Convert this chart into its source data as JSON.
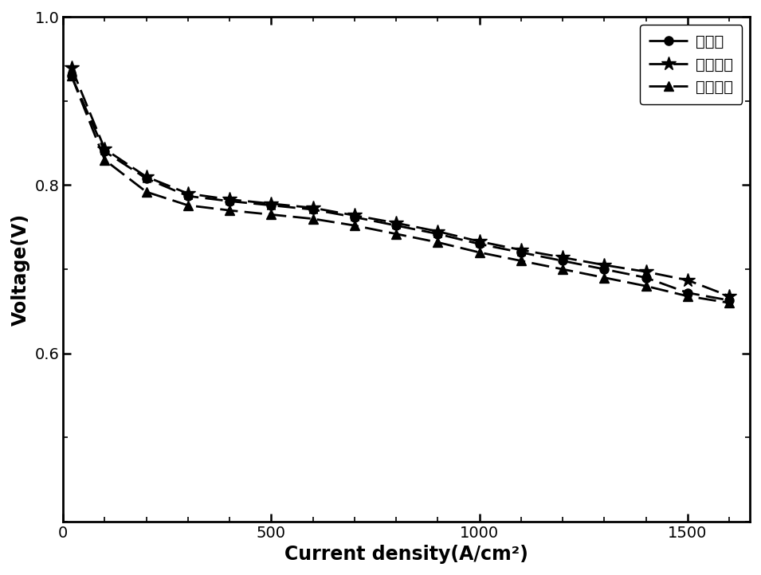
{
  "series": [
    {
      "label": "比较例",
      "marker": "o",
      "x": [
        20,
        100,
        200,
        300,
        400,
        500,
        600,
        700,
        800,
        900,
        1000,
        1100,
        1200,
        1300,
        1400,
        1500,
        1600
      ],
      "y": [
        0.93,
        0.84,
        0.808,
        0.787,
        0.781,
        0.776,
        0.771,
        0.762,
        0.752,
        0.742,
        0.73,
        0.72,
        0.71,
        0.7,
        0.69,
        0.672,
        0.663
      ]
    },
    {
      "label": "实施例一",
      "marker": "*",
      "x": [
        20,
        100,
        200,
        300,
        400,
        500,
        600,
        700,
        800,
        900,
        1000,
        1100,
        1200,
        1300,
        1400,
        1500,
        1600
      ],
      "y": [
        0.94,
        0.843,
        0.81,
        0.79,
        0.783,
        0.778,
        0.773,
        0.764,
        0.755,
        0.745,
        0.733,
        0.723,
        0.714,
        0.705,
        0.697,
        0.687,
        0.668
      ]
    },
    {
      "label": "实施例二",
      "marker": "^",
      "x": [
        20,
        100,
        200,
        300,
        400,
        500,
        600,
        700,
        800,
        900,
        1000,
        1100,
        1200,
        1300,
        1400,
        1500,
        1600
      ],
      "y": [
        0.93,
        0.83,
        0.792,
        0.776,
        0.77,
        0.765,
        0.76,
        0.752,
        0.742,
        0.732,
        0.72,
        0.71,
        0.7,
        0.69,
        0.68,
        0.668,
        0.66
      ]
    }
  ],
  "xlabel": "Current density(A/cm²)",
  "ylabel": "Voltage(V)",
  "xlim": [
    0,
    1650
  ],
  "ylim": [
    0.4,
    1.0
  ],
  "yticks": [
    0.6,
    0.8,
    1.0
  ],
  "xticks": [
    0,
    500,
    1000,
    1500
  ],
  "color": "#000000",
  "linewidth": 2.0,
  "markersize_circle": 8,
  "markersize_star": 13,
  "markersize_triangle": 8,
  "legend_fontsize": 14,
  "axis_label_fontsize": 17,
  "tick_fontsize": 14,
  "dash_pattern": [
    8,
    3
  ]
}
